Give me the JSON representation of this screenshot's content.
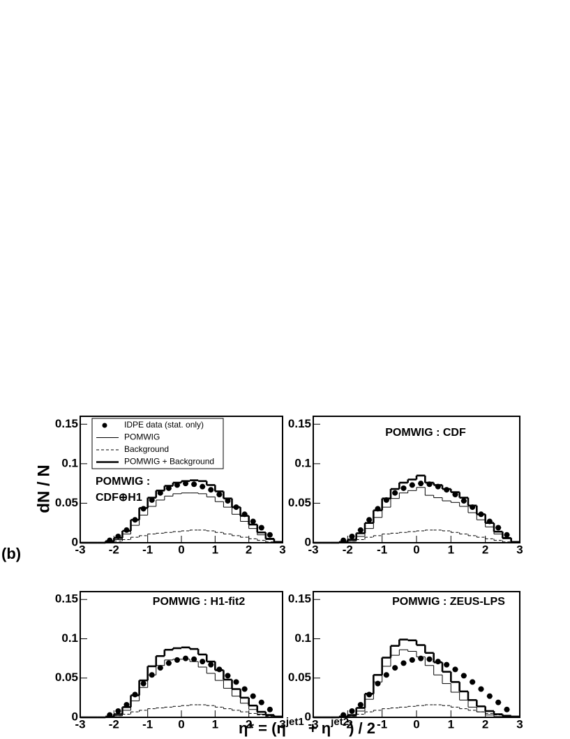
{
  "figure_label": "(b)",
  "y_label": "dN / N",
  "x_label": [
    "η* = (η",
    "jet1",
    " + η",
    "jet2",
    ") / 2"
  ],
  "chart_data": [
    {
      "type": "histogram",
      "title": [
        "POMWIG :",
        "CDF⊕H1"
      ],
      "legend": "top-left",
      "bins": [
        -3,
        -2.75,
        -2.5,
        -2.25,
        -2,
        -1.75,
        -1.5,
        -1.25,
        -1,
        -0.75,
        -0.5,
        -0.25,
        0,
        0.25,
        0.5,
        0.75,
        1,
        1.25,
        1.5,
        1.75,
        2,
        2.25,
        2.5,
        2.75,
        3
      ],
      "xlim": [
        -3,
        3
      ],
      "ylim": [
        0,
        0.16
      ],
      "xticks": [
        -3,
        -2,
        -1,
        0,
        1,
        2,
        3
      ],
      "yticks": [
        0,
        0.05,
        0.1,
        0.15
      ],
      "color": "#000000",
      "series": [
        {
          "name": "IDPE data (stat. only)",
          "style": "points",
          "values": [
            null,
            null,
            null,
            0.003,
            0.008,
            0.016,
            0.029,
            0.043,
            0.054,
            0.063,
            0.069,
            0.073,
            0.075,
            0.074,
            0.071,
            0.067,
            0.061,
            0.053,
            0.045,
            0.036,
            0.027,
            0.019,
            0.01,
            null
          ]
        },
        {
          "name": "POMWIG",
          "style": "thin",
          "values": [
            0,
            0,
            0,
            0.001,
            0.004,
            0.011,
            0.022,
            0.035,
            0.046,
            0.054,
            0.059,
            0.062,
            0.063,
            0.063,
            0.062,
            0.058,
            0.052,
            0.045,
            0.036,
            0.027,
            0.018,
            0.01,
            0.004,
            0.001
          ]
        },
        {
          "name": "Background",
          "style": "dashed",
          "values": [
            0,
            0,
            0,
            0.001,
            0.002,
            0.004,
            0.007,
            0.009,
            0.011,
            0.012,
            0.013,
            0.014,
            0.015,
            0.016,
            0.016,
            0.015,
            0.013,
            0.011,
            0.009,
            0.007,
            0.005,
            0.003,
            0.001,
            0
          ]
        },
        {
          "name": "POMWIG + Background",
          "style": "thick",
          "values": [
            0,
            0,
            0,
            0.002,
            0.006,
            0.015,
            0.029,
            0.044,
            0.057,
            0.066,
            0.072,
            0.076,
            0.078,
            0.079,
            0.078,
            0.073,
            0.065,
            0.056,
            0.045,
            0.034,
            0.023,
            0.013,
            0.005,
            0.001
          ]
        }
      ]
    },
    {
      "type": "histogram",
      "title": [
        "POMWIG : CDF"
      ],
      "bins": [
        -3,
        -2.75,
        -2.5,
        -2.25,
        -2,
        -1.75,
        -1.5,
        -1.25,
        -1,
        -0.75,
        -0.5,
        -0.25,
        0,
        0.25,
        0.5,
        0.75,
        1,
        1.25,
        1.5,
        1.75,
        2,
        2.25,
        2.5,
        2.75,
        3
      ],
      "xlim": [
        -3,
        3
      ],
      "ylim": [
        0,
        0.16
      ],
      "xticks": [
        -3,
        -2,
        -1,
        0,
        1,
        2,
        3
      ],
      "yticks": [
        0,
        0.05,
        0.1,
        0.15
      ],
      "color": "#000000",
      "series": [
        {
          "style": "points",
          "values": [
            null,
            null,
            null,
            0.003,
            0.008,
            0.016,
            0.029,
            0.043,
            0.054,
            0.063,
            0.069,
            0.073,
            0.075,
            0.074,
            0.071,
            0.067,
            0.061,
            0.053,
            0.045,
            0.036,
            0.027,
            0.019,
            0.01,
            null
          ]
        },
        {
          "style": "thin",
          "values": [
            0,
            0,
            0,
            0,
            0.002,
            0.008,
            0.018,
            0.032,
            0.045,
            0.056,
            0.063,
            0.066,
            0.07,
            0.06,
            0.057,
            0.053,
            0.051,
            0.046,
            0.038,
            0.029,
            0.02,
            0.011,
            0.005,
            0.001
          ]
        },
        {
          "style": "dashed",
          "values": [
            0,
            0,
            0,
            0.001,
            0.002,
            0.004,
            0.007,
            0.009,
            0.011,
            0.012,
            0.013,
            0.014,
            0.015,
            0.016,
            0.016,
            0.015,
            0.013,
            0.011,
            0.009,
            0.007,
            0.005,
            0.003,
            0.001,
            0
          ]
        },
        {
          "style": "thick",
          "values": [
            0,
            0,
            0,
            0.001,
            0.004,
            0.012,
            0.025,
            0.041,
            0.056,
            0.068,
            0.076,
            0.08,
            0.085,
            0.076,
            0.073,
            0.068,
            0.064,
            0.057,
            0.047,
            0.036,
            0.025,
            0.014,
            0.006,
            0.001
          ]
        }
      ]
    },
    {
      "type": "histogram",
      "title": [
        "POMWIG : H1-fit2"
      ],
      "bins": [
        -3,
        -2.75,
        -2.5,
        -2.25,
        -2,
        -1.75,
        -1.5,
        -1.25,
        -1,
        -0.75,
        -0.5,
        -0.25,
        0,
        0.25,
        0.5,
        0.75,
        1,
        1.25,
        1.5,
        1.75,
        2,
        2.25,
        2.5,
        2.75,
        3
      ],
      "xlim": [
        -3,
        3
      ],
      "ylim": [
        0,
        0.16
      ],
      "xticks": [
        -3,
        -2,
        -1,
        0,
        1,
        2,
        3
      ],
      "yticks": [
        0,
        0.05,
        0.1,
        0.15
      ],
      "color": "#000000",
      "series": [
        {
          "style": "points",
          "values": [
            null,
            null,
            null,
            0.003,
            0.008,
            0.016,
            0.029,
            0.043,
            0.054,
            0.063,
            0.069,
            0.073,
            0.075,
            0.074,
            0.071,
            0.067,
            0.061,
            0.053,
            0.045,
            0.036,
            0.027,
            0.019,
            0.01,
            null
          ]
        },
        {
          "style": "thin",
          "values": [
            0,
            0,
            0,
            0,
            0.002,
            0.009,
            0.021,
            0.038,
            0.054,
            0.066,
            0.073,
            0.074,
            0.074,
            0.071,
            0.064,
            0.056,
            0.047,
            0.037,
            0.027,
            0.018,
            0.01,
            0.004,
            0.002,
            0.001
          ]
        },
        {
          "style": "dashed",
          "values": [
            0,
            0,
            0,
            0.001,
            0.002,
            0.004,
            0.007,
            0.009,
            0.011,
            0.012,
            0.013,
            0.014,
            0.015,
            0.016,
            0.016,
            0.015,
            0.013,
            0.011,
            0.009,
            0.007,
            0.005,
            0.003,
            0.001,
            0
          ]
        },
        {
          "style": "thick",
          "values": [
            0,
            0,
            0,
            0.001,
            0.004,
            0.013,
            0.028,
            0.047,
            0.065,
            0.078,
            0.086,
            0.088,
            0.089,
            0.087,
            0.08,
            0.071,
            0.06,
            0.048,
            0.036,
            0.025,
            0.015,
            0.007,
            0.003,
            0.001
          ]
        }
      ]
    },
    {
      "type": "histogram",
      "title": [
        "POMWIG : ZEUS-LPS"
      ],
      "bins": [
        -3,
        -2.75,
        -2.5,
        -2.25,
        -2,
        -1.75,
        -1.5,
        -1.25,
        -1,
        -0.75,
        -0.5,
        -0.25,
        0,
        0.25,
        0.5,
        0.75,
        1,
        1.25,
        1.5,
        1.75,
        2,
        2.25,
        2.5,
        2.75,
        3
      ],
      "xlim": [
        -3,
        3
      ],
      "ylim": [
        0,
        0.16
      ],
      "xticks": [
        -3,
        -2,
        -1,
        0,
        1,
        2,
        3
      ],
      "yticks": [
        0,
        0.05,
        0.1,
        0.15
      ],
      "color": "#000000",
      "series": [
        {
          "style": "points",
          "values": [
            null,
            null,
            null,
            0.003,
            0.008,
            0.016,
            0.029,
            0.043,
            0.054,
            0.063,
            0.069,
            0.073,
            0.075,
            0.074,
            0.071,
            0.067,
            0.061,
            0.053,
            0.045,
            0.036,
            0.027,
            0.019,
            0.01,
            null
          ]
        },
        {
          "style": "thin",
          "values": [
            0,
            0,
            0,
            0,
            0.001,
            0.008,
            0.023,
            0.045,
            0.065,
            0.079,
            0.086,
            0.084,
            0.077,
            0.066,
            0.054,
            0.043,
            0.032,
            0.022,
            0.013,
            0.007,
            0.003,
            0.001,
            0.001,
            0.001
          ]
        },
        {
          "style": "dashed",
          "values": [
            0,
            0,
            0,
            0.001,
            0.002,
            0.004,
            0.007,
            0.009,
            0.011,
            0.012,
            0.013,
            0.014,
            0.015,
            0.016,
            0.016,
            0.015,
            0.013,
            0.011,
            0.009,
            0.007,
            0.005,
            0.003,
            0.001,
            0
          ]
        },
        {
          "style": "thick",
          "values": [
            0,
            0,
            0,
            0.001,
            0.003,
            0.012,
            0.03,
            0.054,
            0.076,
            0.091,
            0.099,
            0.098,
            0.092,
            0.082,
            0.07,
            0.058,
            0.045,
            0.033,
            0.022,
            0.014,
            0.008,
            0.004,
            0.002,
            0.001
          ]
        }
      ]
    }
  ]
}
